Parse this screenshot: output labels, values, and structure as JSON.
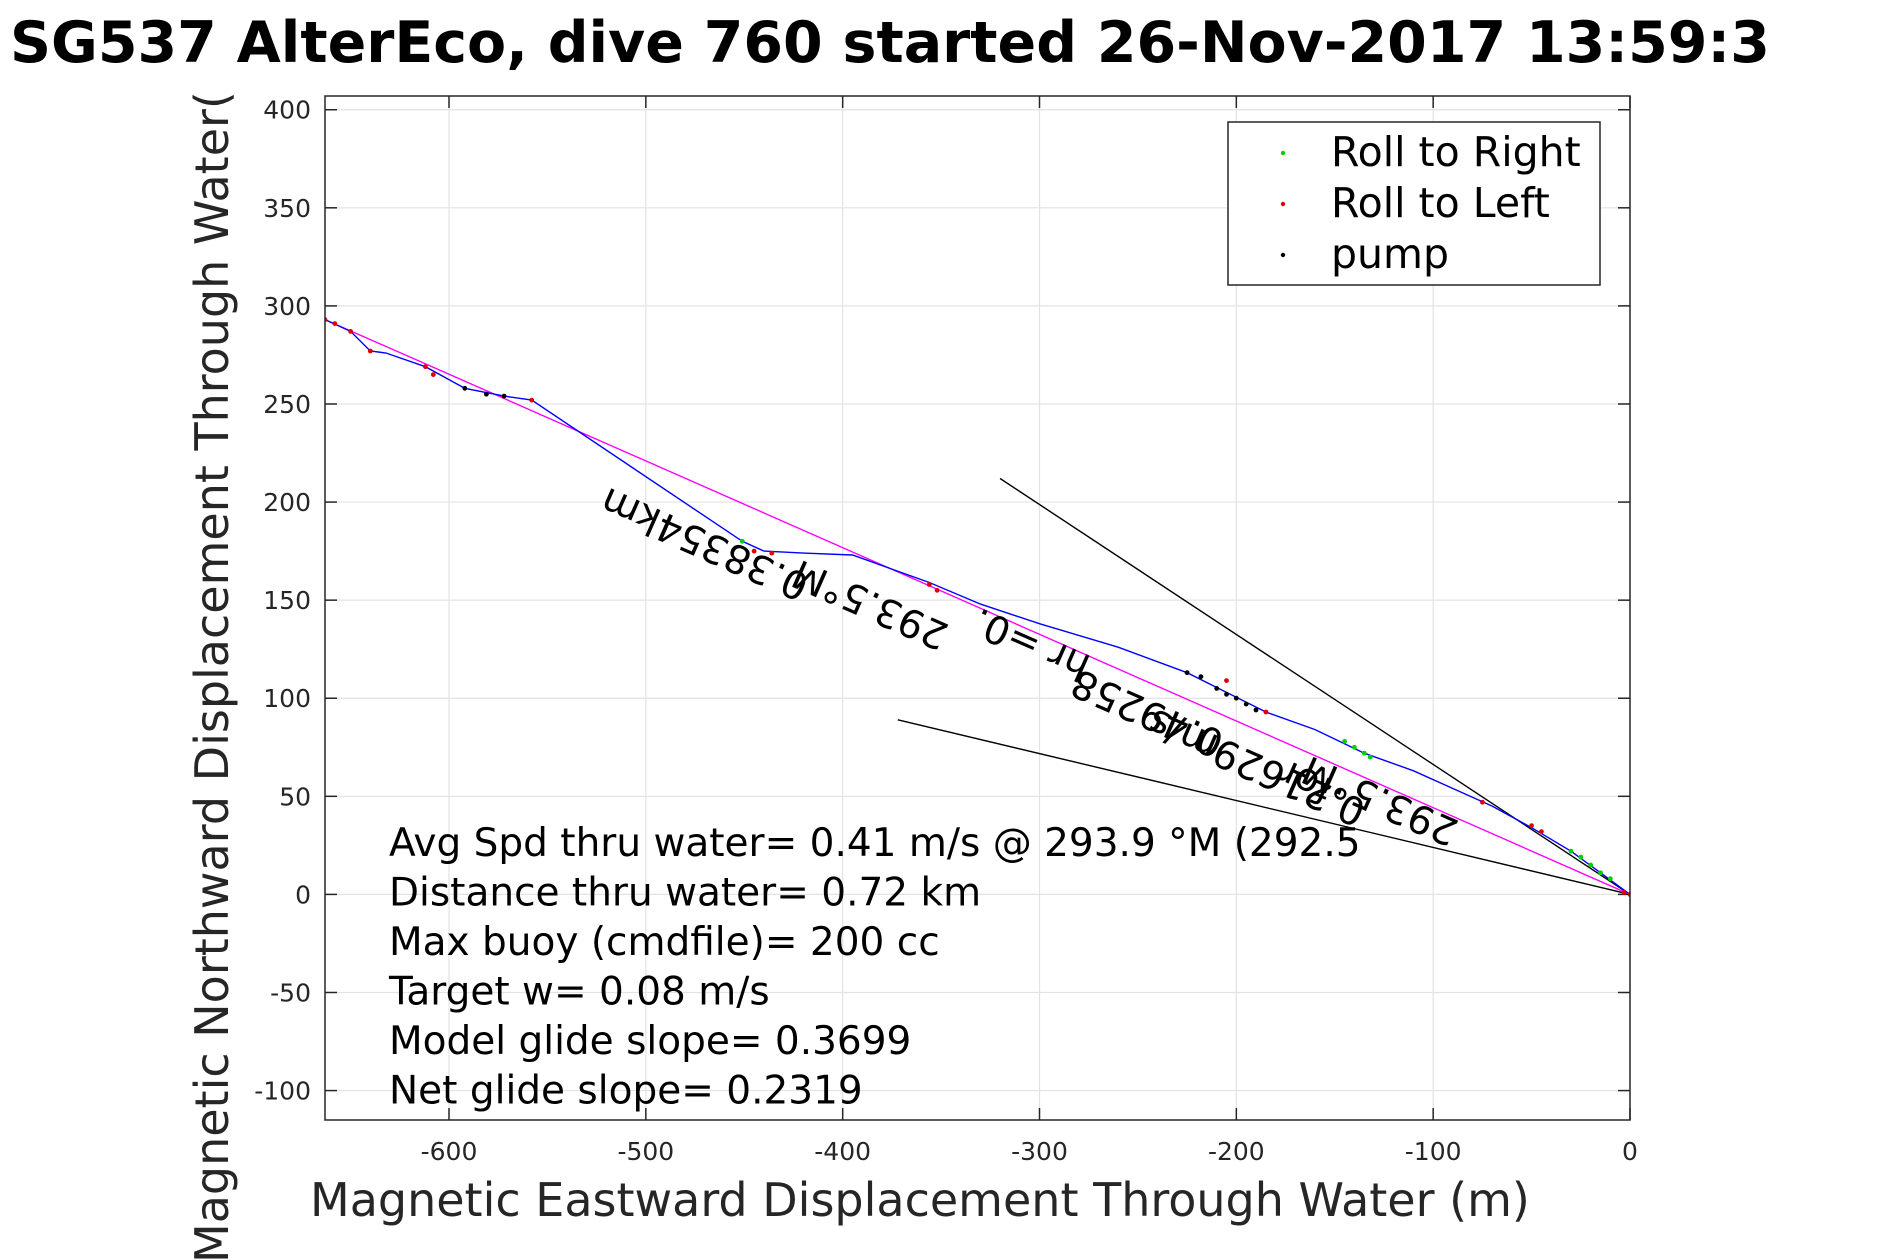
{
  "chart_data": {
    "type": "scatter",
    "title": "SG537 AlterEco, dive 760 started 26-Nov-2017 13:59:3",
    "xlabel": "Magnetic Eastward Displacement Through Water (m)",
    "ylabel": "Magnetic Northward Displacement Through Water(",
    "xlim": [
      -663,
      0
    ],
    "ylim": [
      -115,
      407
    ],
    "xticks": [
      -600,
      -500,
      -400,
      -300,
      -200,
      -100,
      0
    ],
    "yticks": [
      -100,
      -50,
      0,
      50,
      100,
      150,
      200,
      250,
      300,
      350,
      400
    ],
    "grid": true,
    "legend_position": "top-right",
    "colors": {
      "track": "#0000ff",
      "roll_right": "#00d000",
      "roll_left": "#e00000",
      "pump": "#000000",
      "heading_line": "#ff00ff",
      "wedge": "#000000"
    },
    "series": [
      {
        "name": "Roll to Right",
        "points": [
          [
            -451,
            180
          ],
          [
            -145,
            78
          ],
          [
            -140,
            75
          ],
          [
            -135,
            72
          ],
          [
            -132,
            70
          ],
          [
            -30,
            22
          ],
          [
            -25,
            19
          ],
          [
            -20,
            15
          ],
          [
            -15,
            11
          ],
          [
            -10,
            8
          ]
        ]
      },
      {
        "name": "Roll to Left",
        "points": [
          [
            -663,
            293
          ],
          [
            -658,
            291
          ],
          [
            -650,
            287
          ],
          [
            -640,
            277
          ],
          [
            -612,
            269
          ],
          [
            -608,
            265
          ],
          [
            -558,
            252
          ],
          [
            -445,
            175
          ],
          [
            -436,
            174
          ],
          [
            -356,
            158
          ],
          [
            -352,
            155
          ],
          [
            -205,
            109
          ],
          [
            -185,
            93
          ],
          [
            -75,
            47
          ],
          [
            -50,
            35
          ],
          [
            -45,
            32
          ],
          [
            -3,
            1
          ],
          [
            0,
            0
          ]
        ]
      },
      {
        "name": "pump",
        "points": [
          [
            -592,
            258
          ],
          [
            -581,
            255
          ],
          [
            -572,
            254
          ],
          [
            -225,
            113
          ],
          [
            -218,
            111
          ],
          [
            -210,
            105
          ],
          [
            -205,
            102
          ],
          [
            -200,
            100
          ],
          [
            -195,
            97
          ],
          [
            -190,
            94
          ]
        ]
      }
    ],
    "track": [
      [
        -663,
        293
      ],
      [
        -650,
        287
      ],
      [
        -640,
        277
      ],
      [
        -632,
        276
      ],
      [
        -612,
        269
      ],
      [
        -592,
        258
      ],
      [
        -572,
        254
      ],
      [
        -558,
        252
      ],
      [
        -451,
        180
      ],
      [
        -440,
        175
      ],
      [
        -420,
        174
      ],
      [
        -395,
        173
      ],
      [
        -356,
        159
      ],
      [
        -330,
        148
      ],
      [
        -300,
        138
      ],
      [
        -260,
        126
      ],
      [
        -225,
        113
      ],
      [
        -205,
        103
      ],
      [
        -185,
        93
      ],
      [
        -160,
        84
      ],
      [
        -135,
        72
      ],
      [
        -110,
        63
      ],
      [
        -90,
        54
      ],
      [
        -70,
        45
      ],
      [
        -50,
        34
      ],
      [
        -30,
        22
      ],
      [
        -15,
        11
      ],
      [
        0,
        0
      ]
    ],
    "heading_line": [
      [
        -663,
        293
      ],
      [
        0,
        0
      ]
    ],
    "wedge_lines": [
      [
        [
          0,
          0
        ],
        [
          -320,
          212
        ]
      ],
      [
        [
          0,
          0
        ],
        [
          -372,
          89
        ]
      ]
    ],
    "annotations": [
      {
        "text": "0.38354km",
        "x": -416,
        "y": 162,
        "angle": 23.8
      },
      {
        "text": "293.5°M",
        "x": -345,
        "y": 137,
        "angle": 23.8
      },
      {
        "text": "hr =0.",
        "x": -273,
        "y": 121,
        "angle": 23.8
      },
      {
        "text": "0.49258",
        "x": -205,
        "y": 82,
        "angle": 23.8
      },
      {
        "text": "for",
        "x": -150,
        "y": 58,
        "angle": 23.8
      },
      {
        "text": "0.21629m/s",
        "x": -133,
        "y": 47,
        "angle": 23.8
      },
      {
        "text": "293.5°M",
        "x": -86,
        "y": 37,
        "angle": 23.8
      }
    ],
    "stats": [
      "Avg Spd thru water=  0.41 m/s @ 293.9 °M (292.5",
      "Distance thru water=  0.72 km",
      "Max buoy (cmdfile)= 200 cc",
      "Target w= 0.08 m/s",
      "Model glide slope= 0.3699",
      "Net glide slope= 0.2319"
    ]
  }
}
